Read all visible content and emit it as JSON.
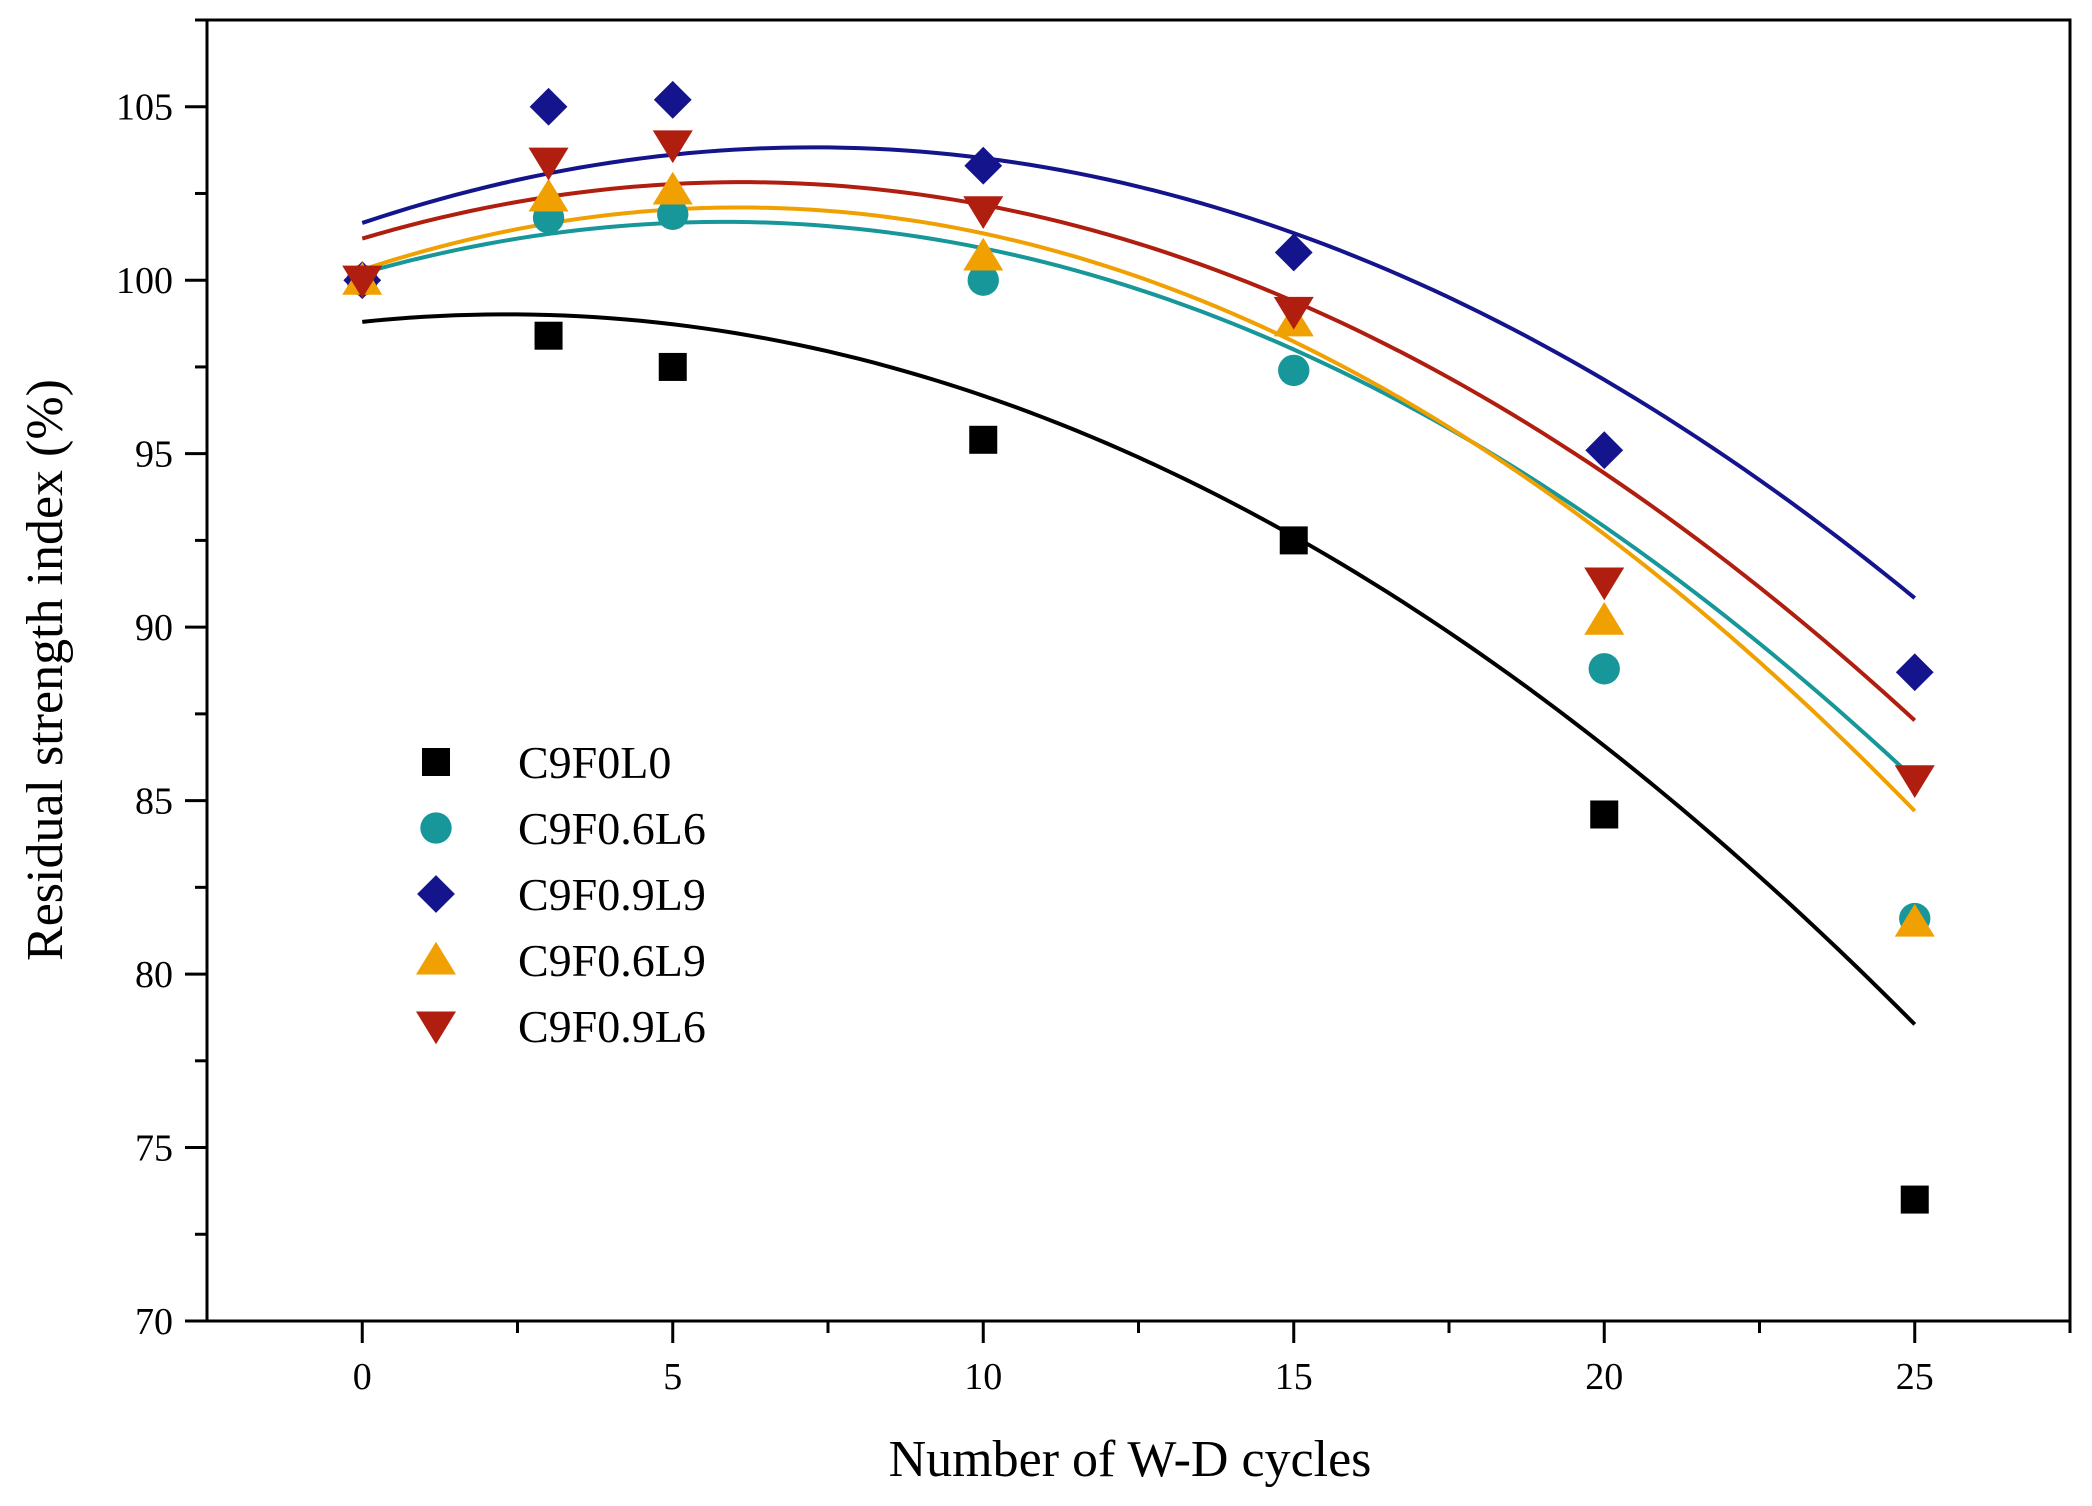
{
  "chart_data": {
    "type": "scatter",
    "title": "",
    "xlabel": "Number of W-D cycles",
    "ylabel": "Residual strength index (%)",
    "xlim": [
      -2.5,
      27.5
    ],
    "ylim": [
      70,
      107.5
    ],
    "xticks": [
      0,
      5,
      10,
      15,
      20,
      25
    ],
    "yticks": [
      70,
      75,
      80,
      85,
      90,
      95,
      100,
      105
    ],
    "x": [
      0,
      3,
      5,
      10,
      15,
      20,
      25
    ],
    "legend_position": "left-middle",
    "series": [
      {
        "name": "C9F0L0",
        "marker": "square",
        "color": "#000000",
        "values": [
          100.0,
          98.4,
          97.5,
          95.4,
          92.5,
          84.6,
          73.5
        ],
        "fit": {
          "type": "quadratic",
          "a": -0.0398,
          "b": 0.185,
          "c": 98.8
        }
      },
      {
        "name": "C9F0.6L6",
        "marker": "circle",
        "color": "#17979a",
        "values": [
          100.0,
          101.8,
          101.9,
          100.0,
          97.4,
          88.8,
          81.6
        ],
        "fit": {
          "type": "quadratic",
          "a": -0.0437,
          "b": 0.509,
          "c": 100.2
        }
      },
      {
        "name": "C9F0.9L9",
        "marker": "diamond",
        "color": "#14148c",
        "values": [
          100.0,
          105.0,
          105.2,
          103.3,
          100.8,
          95.1,
          88.7
        ],
        "fit": {
          "type": "quadratic",
          "a": -0.0413,
          "b": 0.6,
          "c": 101.65
        }
      },
      {
        "name": "C9F0.6L9",
        "marker": "triangle-up",
        "color": "#f0a000",
        "values": [
          100.0,
          102.4,
          102.6,
          100.7,
          98.8,
          90.2,
          81.5
        ],
        "fit": {
          "type": "quadratic",
          "a": -0.0486,
          "b": 0.591,
          "c": 100.3
        }
      },
      {
        "name": "C9F0.9L6",
        "marker": "triangle-down",
        "color": "#b01e10",
        "values": [
          100.0,
          103.4,
          103.9,
          102.0,
          99.1,
          91.3,
          85.6
        ],
        "fit": {
          "type": "quadratic",
          "a": -0.0435,
          "b": 0.532,
          "c": 101.2
        }
      }
    ]
  }
}
